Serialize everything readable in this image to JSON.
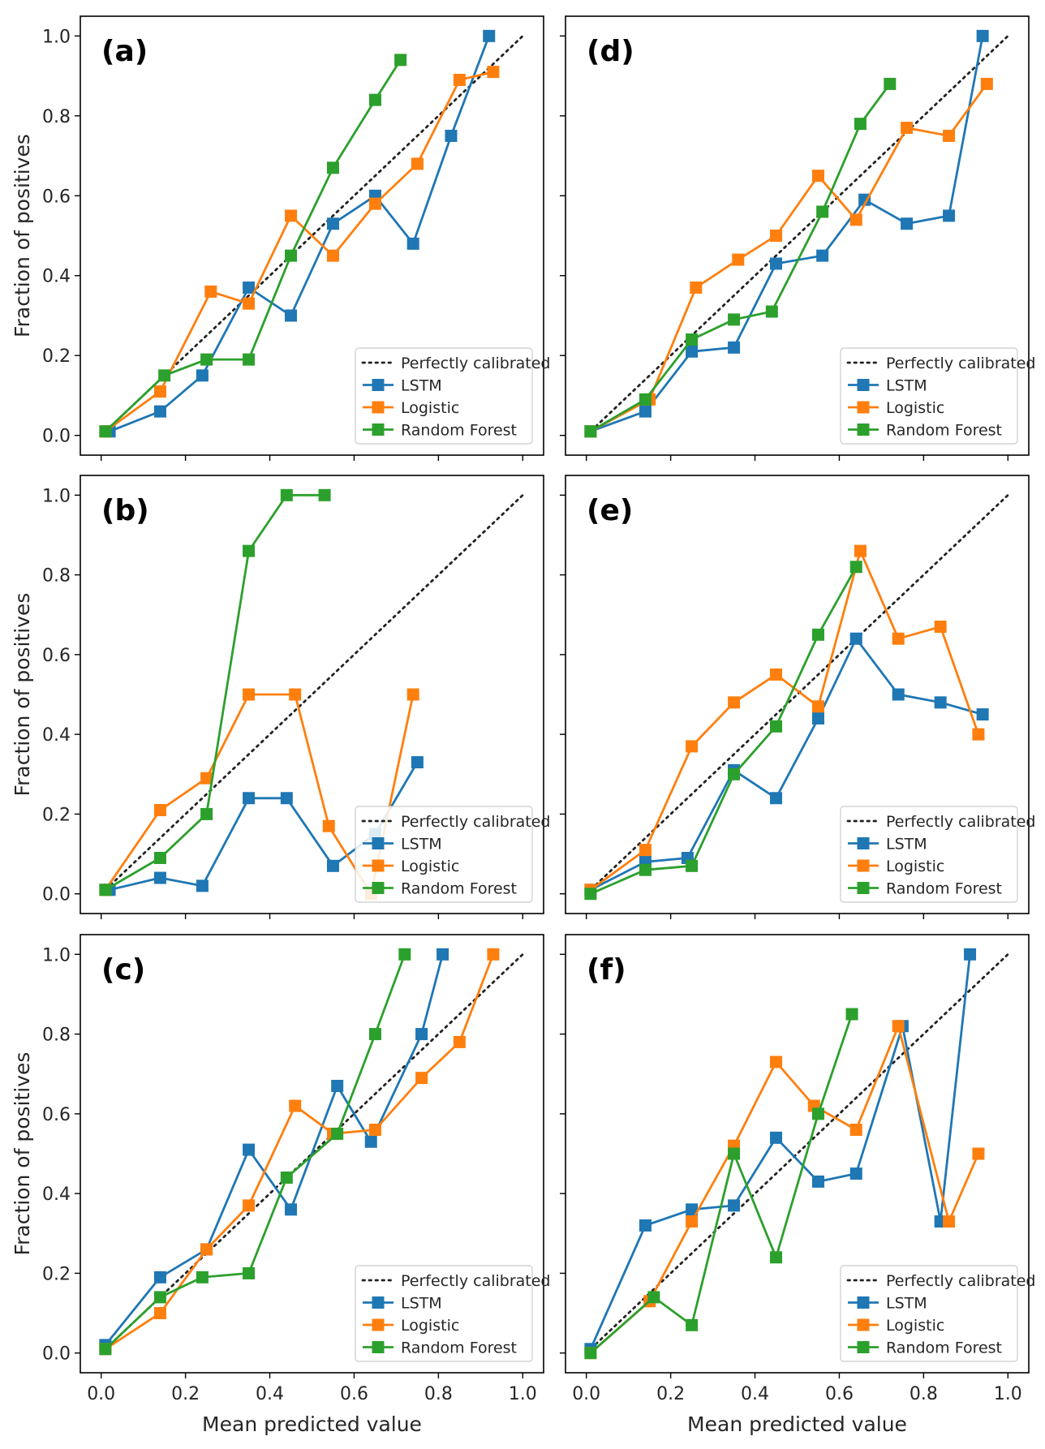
{
  "colors": {
    "lstm": "#1f77b4",
    "logistic": "#ff7f0e",
    "random_forest": "#2ca02c",
    "diagonal": "#222222",
    "axes": "#000000"
  },
  "axis_titles": {
    "ylabel": "Fraction of positives",
    "xlabel": "Mean predicted value"
  },
  "chart_data": [
    {
      "type": "line",
      "panel": "(a)",
      "xlim": [
        0,
        1
      ],
      "ylim": [
        0,
        1
      ],
      "xticks": [
        "0.0",
        "0.2",
        "0.4",
        "0.6",
        "0.8",
        "1.0"
      ],
      "yticks": [
        "0.0",
        "0.2",
        "0.4",
        "0.6",
        "0.8",
        "1.0"
      ],
      "xlabel": "",
      "ylabel": "Fraction of positives",
      "legend": [
        "Perfectly calibrated",
        "LSTM",
        "Logistic",
        "Random Forest"
      ],
      "series": [
        {
          "name": "LSTM",
          "color_key": "lstm",
          "x": [
            0.02,
            0.14,
            0.24,
            0.35,
            0.45,
            0.55,
            0.65,
            0.74,
            0.83,
            0.92
          ],
          "y": [
            0.01,
            0.06,
            0.15,
            0.37,
            0.3,
            0.53,
            0.6,
            0.48,
            0.75,
            1.0
          ]
        },
        {
          "name": "Logistic",
          "color_key": "logistic",
          "x": [
            0.01,
            0.14,
            0.26,
            0.35,
            0.45,
            0.55,
            0.65,
            0.75,
            0.85,
            0.93
          ],
          "y": [
            0.01,
            0.11,
            0.36,
            0.33,
            0.55,
            0.45,
            0.58,
            0.68,
            0.89,
            0.91
          ]
        },
        {
          "name": "Random Forest",
          "color_key": "random_forest",
          "x": [
            0.01,
            0.15,
            0.25,
            0.35,
            0.45,
            0.55,
            0.65,
            0.71
          ],
          "y": [
            0.01,
            0.15,
            0.19,
            0.19,
            0.45,
            0.67,
            0.84,
            0.94
          ]
        }
      ]
    },
    {
      "type": "line",
      "panel": "(d)",
      "xlim": [
        0,
        1
      ],
      "ylim": [
        0,
        1
      ],
      "xticks": [
        "0.0",
        "0.2",
        "0.4",
        "0.6",
        "0.8",
        "1.0"
      ],
      "yticks": [
        "0.0",
        "0.2",
        "0.4",
        "0.6",
        "0.8",
        "1.0"
      ],
      "xlabel": "",
      "ylabel": "",
      "legend": [
        "Perfectly calibrated",
        "LSTM",
        "Logistic",
        "Random Forest"
      ],
      "series": [
        {
          "name": "LSTM",
          "color_key": "lstm",
          "x": [
            0.01,
            0.14,
            0.25,
            0.35,
            0.45,
            0.56,
            0.66,
            0.76,
            0.86,
            0.94
          ],
          "y": [
            0.01,
            0.06,
            0.21,
            0.22,
            0.43,
            0.45,
            0.59,
            0.53,
            0.55,
            1.0
          ]
        },
        {
          "name": "Logistic",
          "color_key": "logistic",
          "x": [
            0.01,
            0.15,
            0.26,
            0.36,
            0.45,
            0.55,
            0.64,
            0.76,
            0.86,
            0.95
          ],
          "y": [
            0.01,
            0.09,
            0.37,
            0.44,
            0.5,
            0.65,
            0.54,
            0.77,
            0.75,
            0.88
          ]
        },
        {
          "name": "Random Forest",
          "color_key": "random_forest",
          "x": [
            0.01,
            0.14,
            0.25,
            0.35,
            0.44,
            0.56,
            0.65,
            0.72
          ],
          "y": [
            0.01,
            0.09,
            0.24,
            0.29,
            0.31,
            0.56,
            0.78,
            0.88
          ]
        }
      ]
    },
    {
      "type": "line",
      "panel": "(b)",
      "xlim": [
        0,
        1
      ],
      "ylim": [
        0,
        1
      ],
      "xticks": [
        "0.0",
        "0.2",
        "0.4",
        "0.6",
        "0.8",
        "1.0"
      ],
      "yticks": [
        "0.0",
        "0.2",
        "0.4",
        "0.6",
        "0.8",
        "1.0"
      ],
      "xlabel": "",
      "ylabel": "Fraction of positives",
      "legend": [
        "Perfectly calibrated",
        "LSTM",
        "Logistic",
        "Random Forest"
      ],
      "series": [
        {
          "name": "LSTM",
          "color_key": "lstm",
          "x": [
            0.02,
            0.14,
            0.24,
            0.35,
            0.44,
            0.55,
            0.65,
            0.75
          ],
          "y": [
            0.01,
            0.04,
            0.02,
            0.24,
            0.24,
            0.07,
            0.15,
            0.33
          ]
        },
        {
          "name": "Logistic",
          "color_key": "logistic",
          "x": [
            0.01,
            0.14,
            0.25,
            0.35,
            0.46,
            0.54,
            0.64,
            0.74
          ],
          "y": [
            0.01,
            0.21,
            0.29,
            0.5,
            0.5,
            0.17,
            0.0,
            0.5
          ]
        },
        {
          "name": "Random Forest",
          "color_key": "random_forest",
          "x": [
            0.01,
            0.14,
            0.25,
            0.35,
            0.44,
            0.53
          ],
          "y": [
            0.01,
            0.09,
            0.2,
            0.86,
            1.0,
            1.0
          ]
        }
      ]
    },
    {
      "type": "line",
      "panel": "(e)",
      "xlim": [
        0,
        1
      ],
      "ylim": [
        0,
        1
      ],
      "xticks": [
        "0.0",
        "0.2",
        "0.4",
        "0.6",
        "0.8",
        "1.0"
      ],
      "yticks": [
        "0.0",
        "0.2",
        "0.4",
        "0.6",
        "0.8",
        "1.0"
      ],
      "xlabel": "",
      "ylabel": "",
      "legend": [
        "Perfectly calibrated",
        "LSTM",
        "Logistic",
        "Random Forest"
      ],
      "series": [
        {
          "name": "LSTM",
          "color_key": "lstm",
          "x": [
            0.01,
            0.14,
            0.24,
            0.35,
            0.45,
            0.55,
            0.64,
            0.74,
            0.84,
            0.94
          ],
          "y": [
            0.01,
            0.08,
            0.09,
            0.31,
            0.24,
            0.44,
            0.64,
            0.5,
            0.48,
            0.45
          ]
        },
        {
          "name": "Logistic",
          "color_key": "logistic",
          "x": [
            0.01,
            0.14,
            0.25,
            0.35,
            0.45,
            0.55,
            0.65,
            0.74,
            0.84,
            0.93
          ],
          "y": [
            0.01,
            0.11,
            0.37,
            0.48,
            0.55,
            0.47,
            0.86,
            0.64,
            0.67,
            0.4
          ]
        },
        {
          "name": "Random Forest",
          "color_key": "random_forest",
          "x": [
            0.01,
            0.14,
            0.25,
            0.35,
            0.45,
            0.55,
            0.64
          ],
          "y": [
            0.0,
            0.06,
            0.07,
            0.3,
            0.42,
            0.65,
            0.82
          ]
        }
      ]
    },
    {
      "type": "line",
      "panel": "(c)",
      "xlim": [
        0,
        1
      ],
      "ylim": [
        0,
        1
      ],
      "xticks": [
        "0.0",
        "0.2",
        "0.4",
        "0.6",
        "0.8",
        "1.0"
      ],
      "yticks": [
        "0.0",
        "0.2",
        "0.4",
        "0.6",
        "0.8",
        "1.0"
      ],
      "xlabel": "Mean predicted value",
      "ylabel": "Fraction of positives",
      "legend": [
        "Perfectly calibrated",
        "LSTM",
        "Logistic",
        "Random Forest"
      ],
      "series": [
        {
          "name": "LSTM",
          "color_key": "lstm",
          "x": [
            0.01,
            0.14,
            0.25,
            0.35,
            0.45,
            0.56,
            0.64,
            0.76,
            0.81
          ],
          "y": [
            0.02,
            0.19,
            0.26,
            0.51,
            0.36,
            0.67,
            0.53,
            0.8,
            1.0
          ]
        },
        {
          "name": "Logistic",
          "color_key": "logistic",
          "x": [
            0.01,
            0.14,
            0.25,
            0.35,
            0.46,
            0.55,
            0.65,
            0.76,
            0.85,
            0.93
          ],
          "y": [
            0.01,
            0.1,
            0.26,
            0.37,
            0.62,
            0.55,
            0.56,
            0.69,
            0.78,
            1.0
          ]
        },
        {
          "name": "Random Forest",
          "color_key": "random_forest",
          "x": [
            0.01,
            0.14,
            0.24,
            0.35,
            0.44,
            0.56,
            0.65,
            0.72
          ],
          "y": [
            0.01,
            0.14,
            0.19,
            0.2,
            0.44,
            0.55,
            0.8,
            1.0
          ]
        }
      ]
    },
    {
      "type": "line",
      "panel": "(f)",
      "xlim": [
        0,
        1
      ],
      "ylim": [
        0,
        1
      ],
      "xticks": [
        "0.0",
        "0.2",
        "0.4",
        "0.6",
        "0.8",
        "1.0"
      ],
      "yticks": [
        "0.0",
        "0.2",
        "0.4",
        "0.6",
        "0.8",
        "1.0"
      ],
      "xlabel": "Mean predicted value",
      "ylabel": "",
      "legend": [
        "Perfectly calibrated",
        "LSTM",
        "Logistic",
        "Random Forest"
      ],
      "series": [
        {
          "name": "LSTM",
          "color_key": "lstm",
          "x": [
            0.01,
            0.14,
            0.25,
            0.35,
            0.45,
            0.55,
            0.64,
            0.75,
            0.84,
            0.91
          ],
          "y": [
            0.01,
            0.32,
            0.36,
            0.37,
            0.54,
            0.43,
            0.45,
            0.82,
            0.33,
            1.0
          ]
        },
        {
          "name": "Logistic",
          "color_key": "logistic",
          "x": [
            0.01,
            0.15,
            0.25,
            0.35,
            0.45,
            0.54,
            0.64,
            0.74,
            0.86,
            0.93
          ],
          "y": [
            0.0,
            0.13,
            0.33,
            0.52,
            0.73,
            0.62,
            0.56,
            0.82,
            0.33,
            0.5
          ]
        },
        {
          "name": "Random Forest",
          "color_key": "random_forest",
          "x": [
            0.01,
            0.16,
            0.25,
            0.35,
            0.45,
            0.55,
            0.63
          ],
          "y": [
            0.0,
            0.14,
            0.07,
            0.5,
            0.24,
            0.6,
            0.85
          ]
        }
      ]
    }
  ]
}
